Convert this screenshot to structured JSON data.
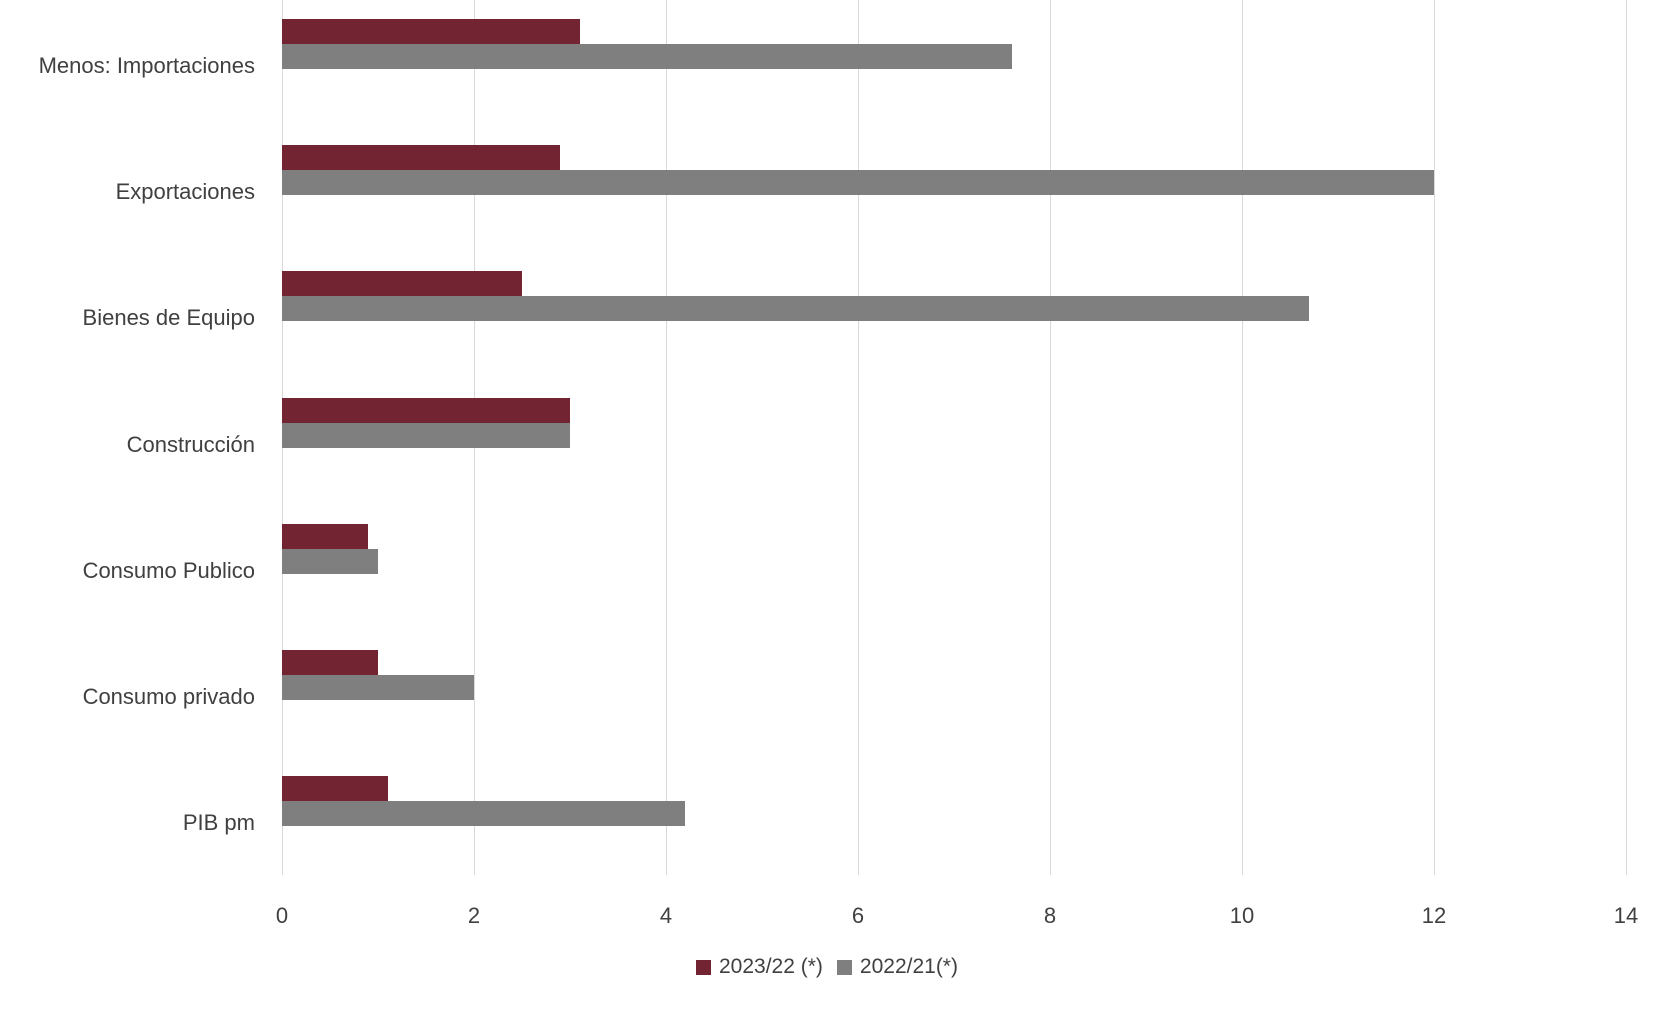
{
  "chart_data": {
    "type": "bar",
    "orientation": "horizontal",
    "title": "",
    "xlabel": "",
    "ylabel": "",
    "categories": [
      "Menos: Importaciones",
      "Exportaciones",
      "Bienes de Equipo",
      "Construcción",
      "Consumo Publico",
      "Consumo privado",
      "PIB pm"
    ],
    "series": [
      {
        "name": "2023/22 (*)",
        "color": "#722433",
        "values": [
          3.1,
          2.9,
          2.5,
          3.0,
          0.9,
          1.0,
          1.1
        ]
      },
      {
        "name": "2022/21(*)",
        "color": "#7f7f7f",
        "values": [
          7.6,
          12.0,
          10.7,
          3.0,
          1.0,
          2.0,
          4.2
        ]
      }
    ],
    "xlim": [
      0,
      14
    ],
    "xticks": [
      0,
      2,
      4,
      6,
      8,
      10,
      12,
      14
    ],
    "grid": true,
    "gridline_color": "#d9d9d9",
    "text_color": "#404040",
    "legend_position": "bottom"
  }
}
